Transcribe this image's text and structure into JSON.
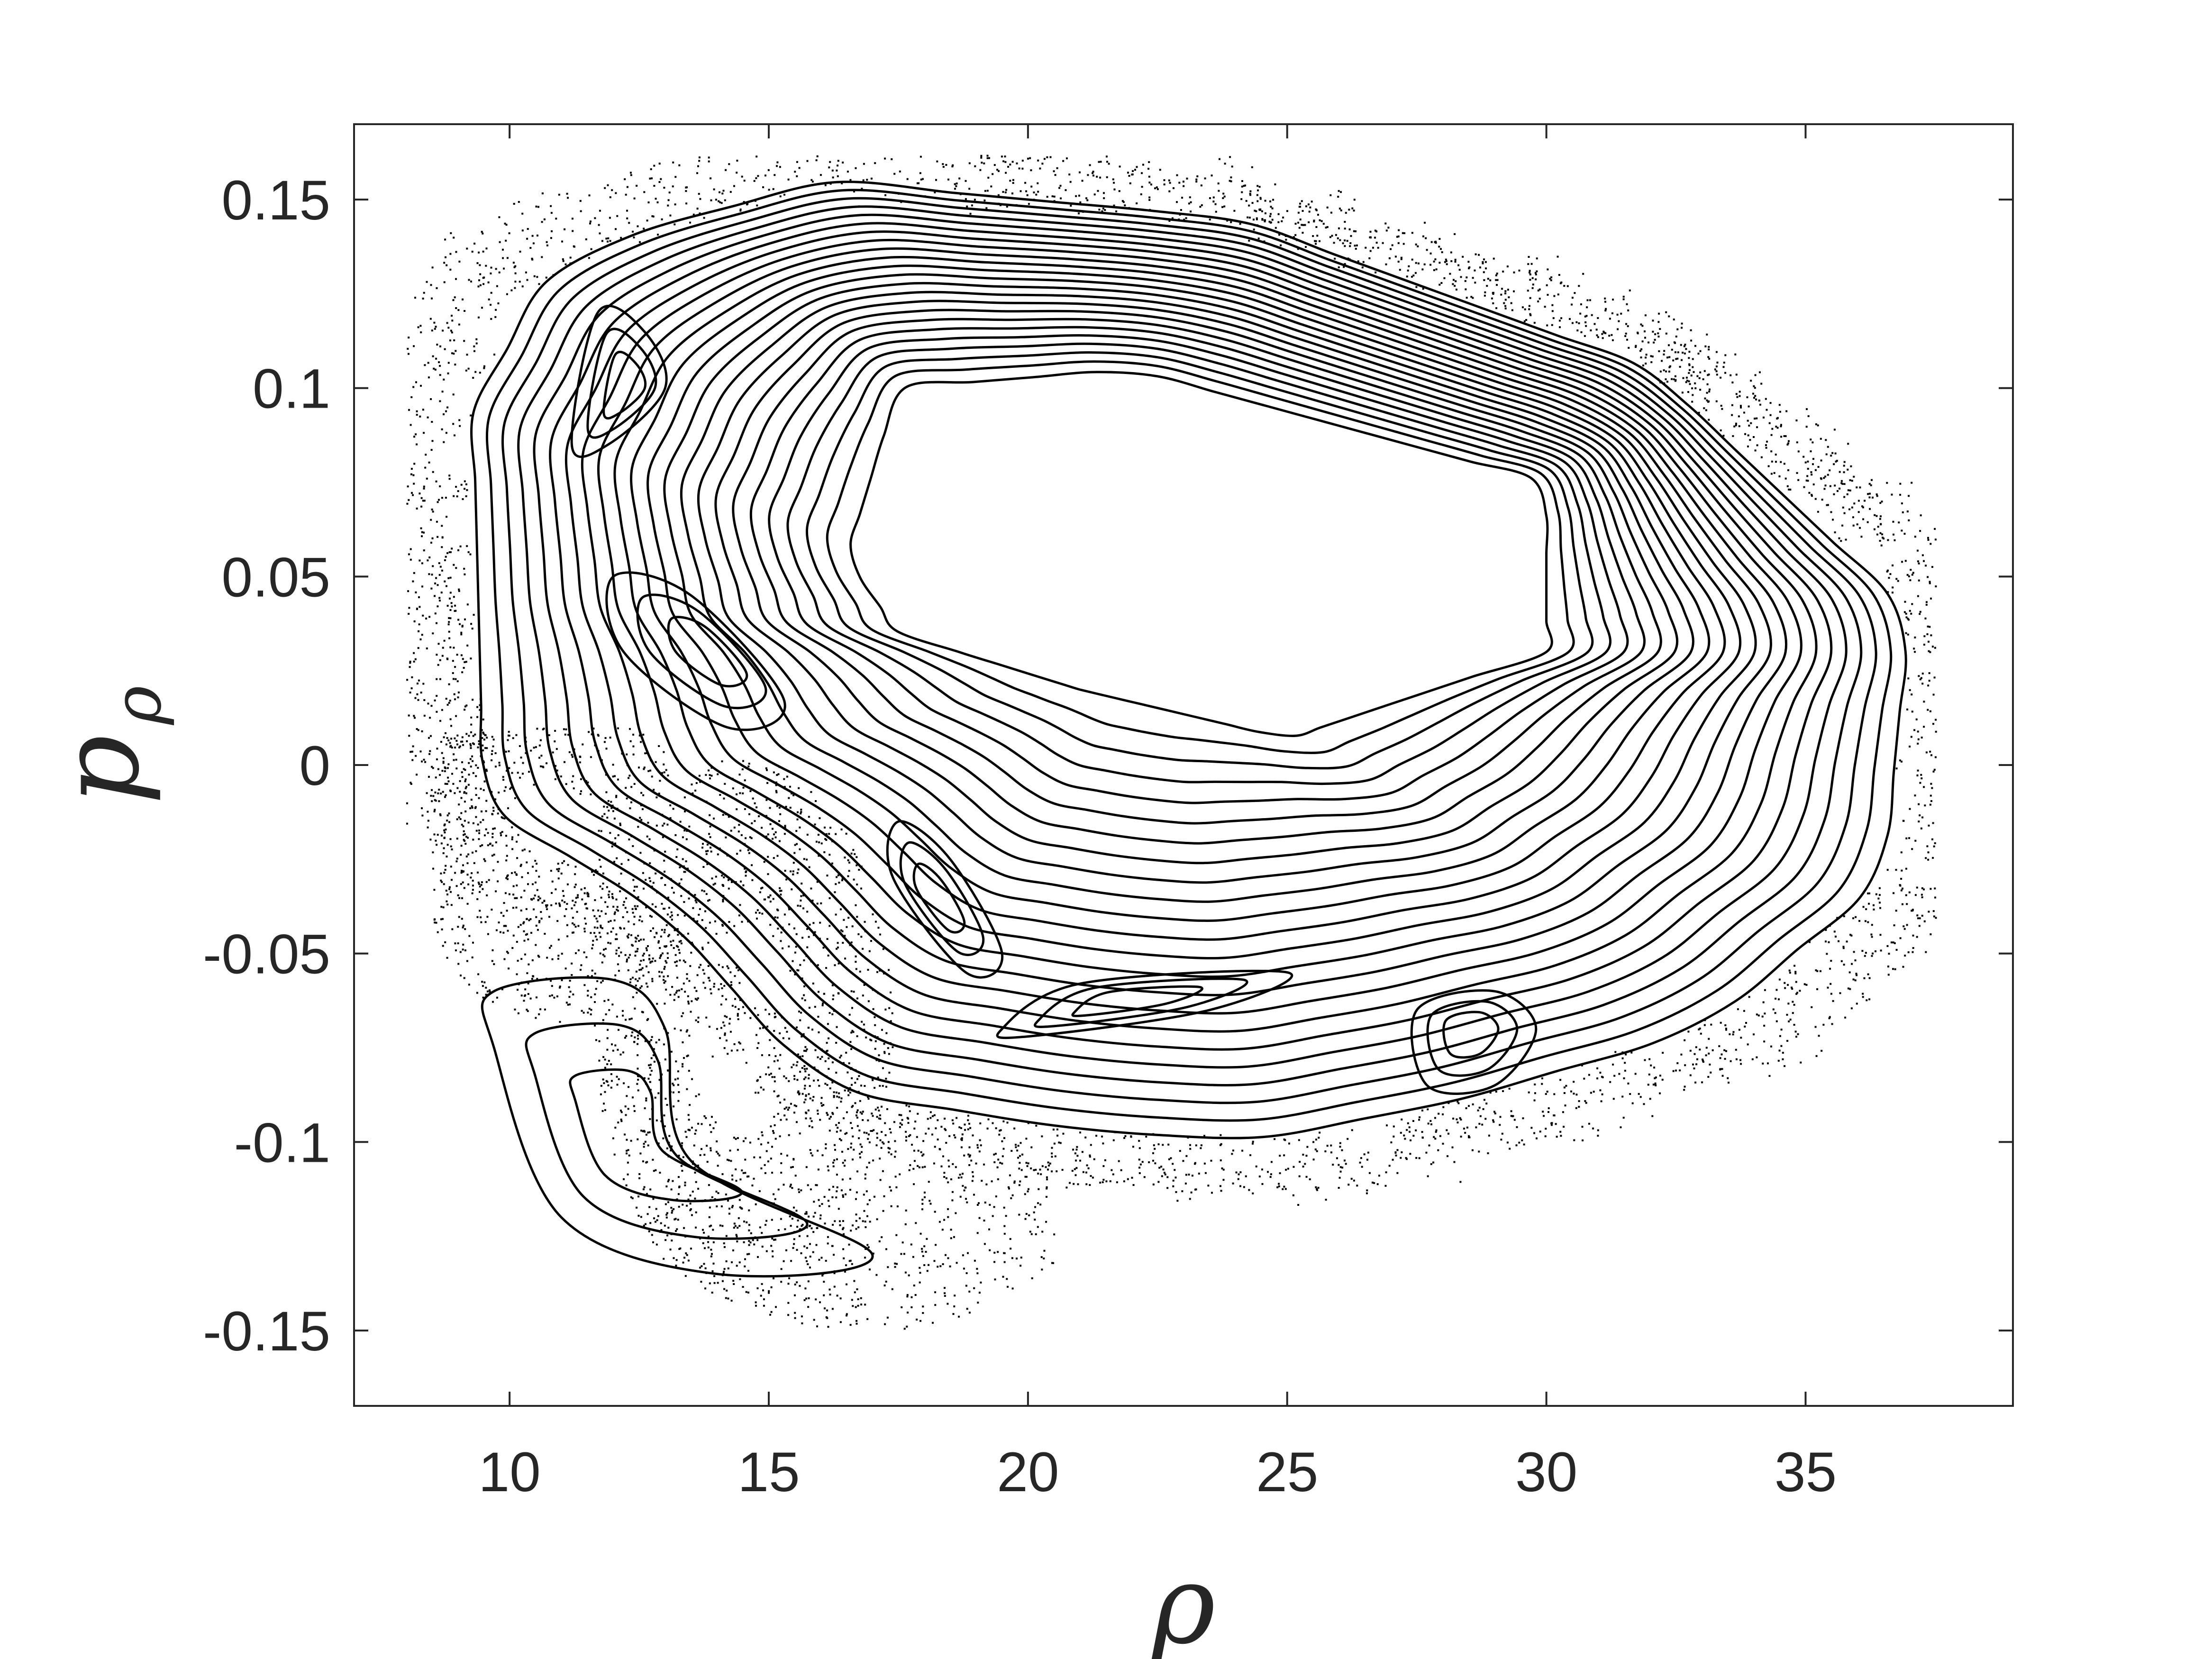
{
  "chart_data": {
    "type": "scatter",
    "xlabel": "ρ",
    "ylabel": "p",
    "ylabel_subscript": "ρ",
    "xlim": [
      7,
      39
    ],
    "ylim": [
      -0.17,
      0.17
    ],
    "xticks": [
      10,
      15,
      20,
      25,
      30,
      35
    ],
    "yticks": [
      -0.15,
      -0.1,
      -0.05,
      0,
      0.05,
      0.1,
      0.15
    ],
    "x_tick_labels": [
      "10",
      "15",
      "20",
      "25",
      "30",
      "35"
    ],
    "y_tick_labels": [
      "-0.15",
      "-0.1",
      "-0.05",
      "0",
      "0.05",
      "0.1",
      "0.15"
    ],
    "grid": false,
    "legend": "none",
    "colors": {
      "marks": "#000000",
      "axes": "#262626",
      "background": "#ffffff"
    },
    "invariant_curves": [
      {
        "kind": "ring",
        "center": [
          22.5,
          0.03
        ],
        "points": [
          [
            16.5,
            0.055
          ],
          [
            17.5,
            0.1
          ],
          [
            22,
            0.105
          ],
          [
            30,
            0.075
          ],
          [
            30,
            0.03
          ],
          [
            25,
            0.007
          ],
          [
            21,
            0.02
          ],
          [
            17.5,
            0.035
          ]
        ]
      },
      {
        "kind": "ring",
        "center": [
          22.5,
          0.03
        ],
        "points": [
          [
            9.3,
            0.095
          ],
          [
            11,
            0.135
          ],
          [
            16,
            0.155
          ],
          [
            24,
            0.145
          ],
          [
            32,
            0.105
          ],
          [
            37,
            0.04
          ],
          [
            36.5,
            -0.03
          ],
          [
            33,
            -0.07
          ],
          [
            28,
            -0.09
          ],
          [
            24,
            -0.1
          ],
          [
            20,
            -0.095
          ],
          [
            16,
            -0.085
          ],
          [
            13,
            -0.04
          ],
          [
            9.5,
            -0.01
          ]
        ]
      },
      {
        "kind": "island",
        "center": [
          14,
          0.03
        ],
        "points": [
          [
            12,
            0.05
          ],
          [
            13.5,
            0.045
          ],
          [
            15.3,
            0.017
          ],
          [
            14.2,
            0.01
          ],
          [
            12.2,
            0.03
          ]
        ]
      },
      {
        "kind": "island",
        "center": [
          12.3,
          0.1
        ],
        "points": [
          [
            11.2,
            0.085
          ],
          [
            11.7,
            0.12
          ],
          [
            12.6,
            0.115
          ],
          [
            13,
            0.1
          ],
          [
            11.9,
            0.085
          ]
        ]
      },
      {
        "kind": "island",
        "center": [
          18.2,
          -0.035
        ],
        "points": [
          [
            17.5,
            -0.015
          ],
          [
            18.5,
            -0.025
          ],
          [
            19.5,
            -0.05
          ],
          [
            18.8,
            -0.055
          ],
          [
            17.4,
            -0.03
          ]
        ]
      },
      {
        "kind": "island",
        "center": [
          22,
          -0.062
        ],
        "points": [
          [
            19.5,
            -0.07
          ],
          [
            21,
            -0.058
          ],
          [
            25,
            -0.055
          ],
          [
            23.5,
            -0.065
          ],
          [
            20,
            -0.072
          ]
        ]
      },
      {
        "kind": "island",
        "center": [
          28.5,
          -0.07
        ],
        "points": [
          [
            27.5,
            -0.065
          ],
          [
            29,
            -0.06
          ],
          [
            29.8,
            -0.07
          ],
          [
            29,
            -0.085
          ],
          [
            27.7,
            -0.085
          ]
        ]
      },
      {
        "kind": "island",
        "center": [
          12.5,
          -0.1
        ],
        "points": [
          [
            9.7,
            -0.06
          ],
          [
            12,
            -0.057
          ],
          [
            13,
            -0.07
          ],
          [
            13.5,
            -0.105
          ],
          [
            17,
            -0.13
          ],
          [
            14,
            -0.135
          ],
          [
            11,
            -0.12
          ],
          [
            9.7,
            -0.075
          ]
        ]
      }
    ],
    "chaotic_sea": {
      "description_points": "scattered dots fill the outer annulus between rho 8 and 37.5 and the lower-left region",
      "extent_x": [
        8,
        37.5
      ],
      "extent_y": [
        -0.16,
        0.162
      ]
    }
  }
}
